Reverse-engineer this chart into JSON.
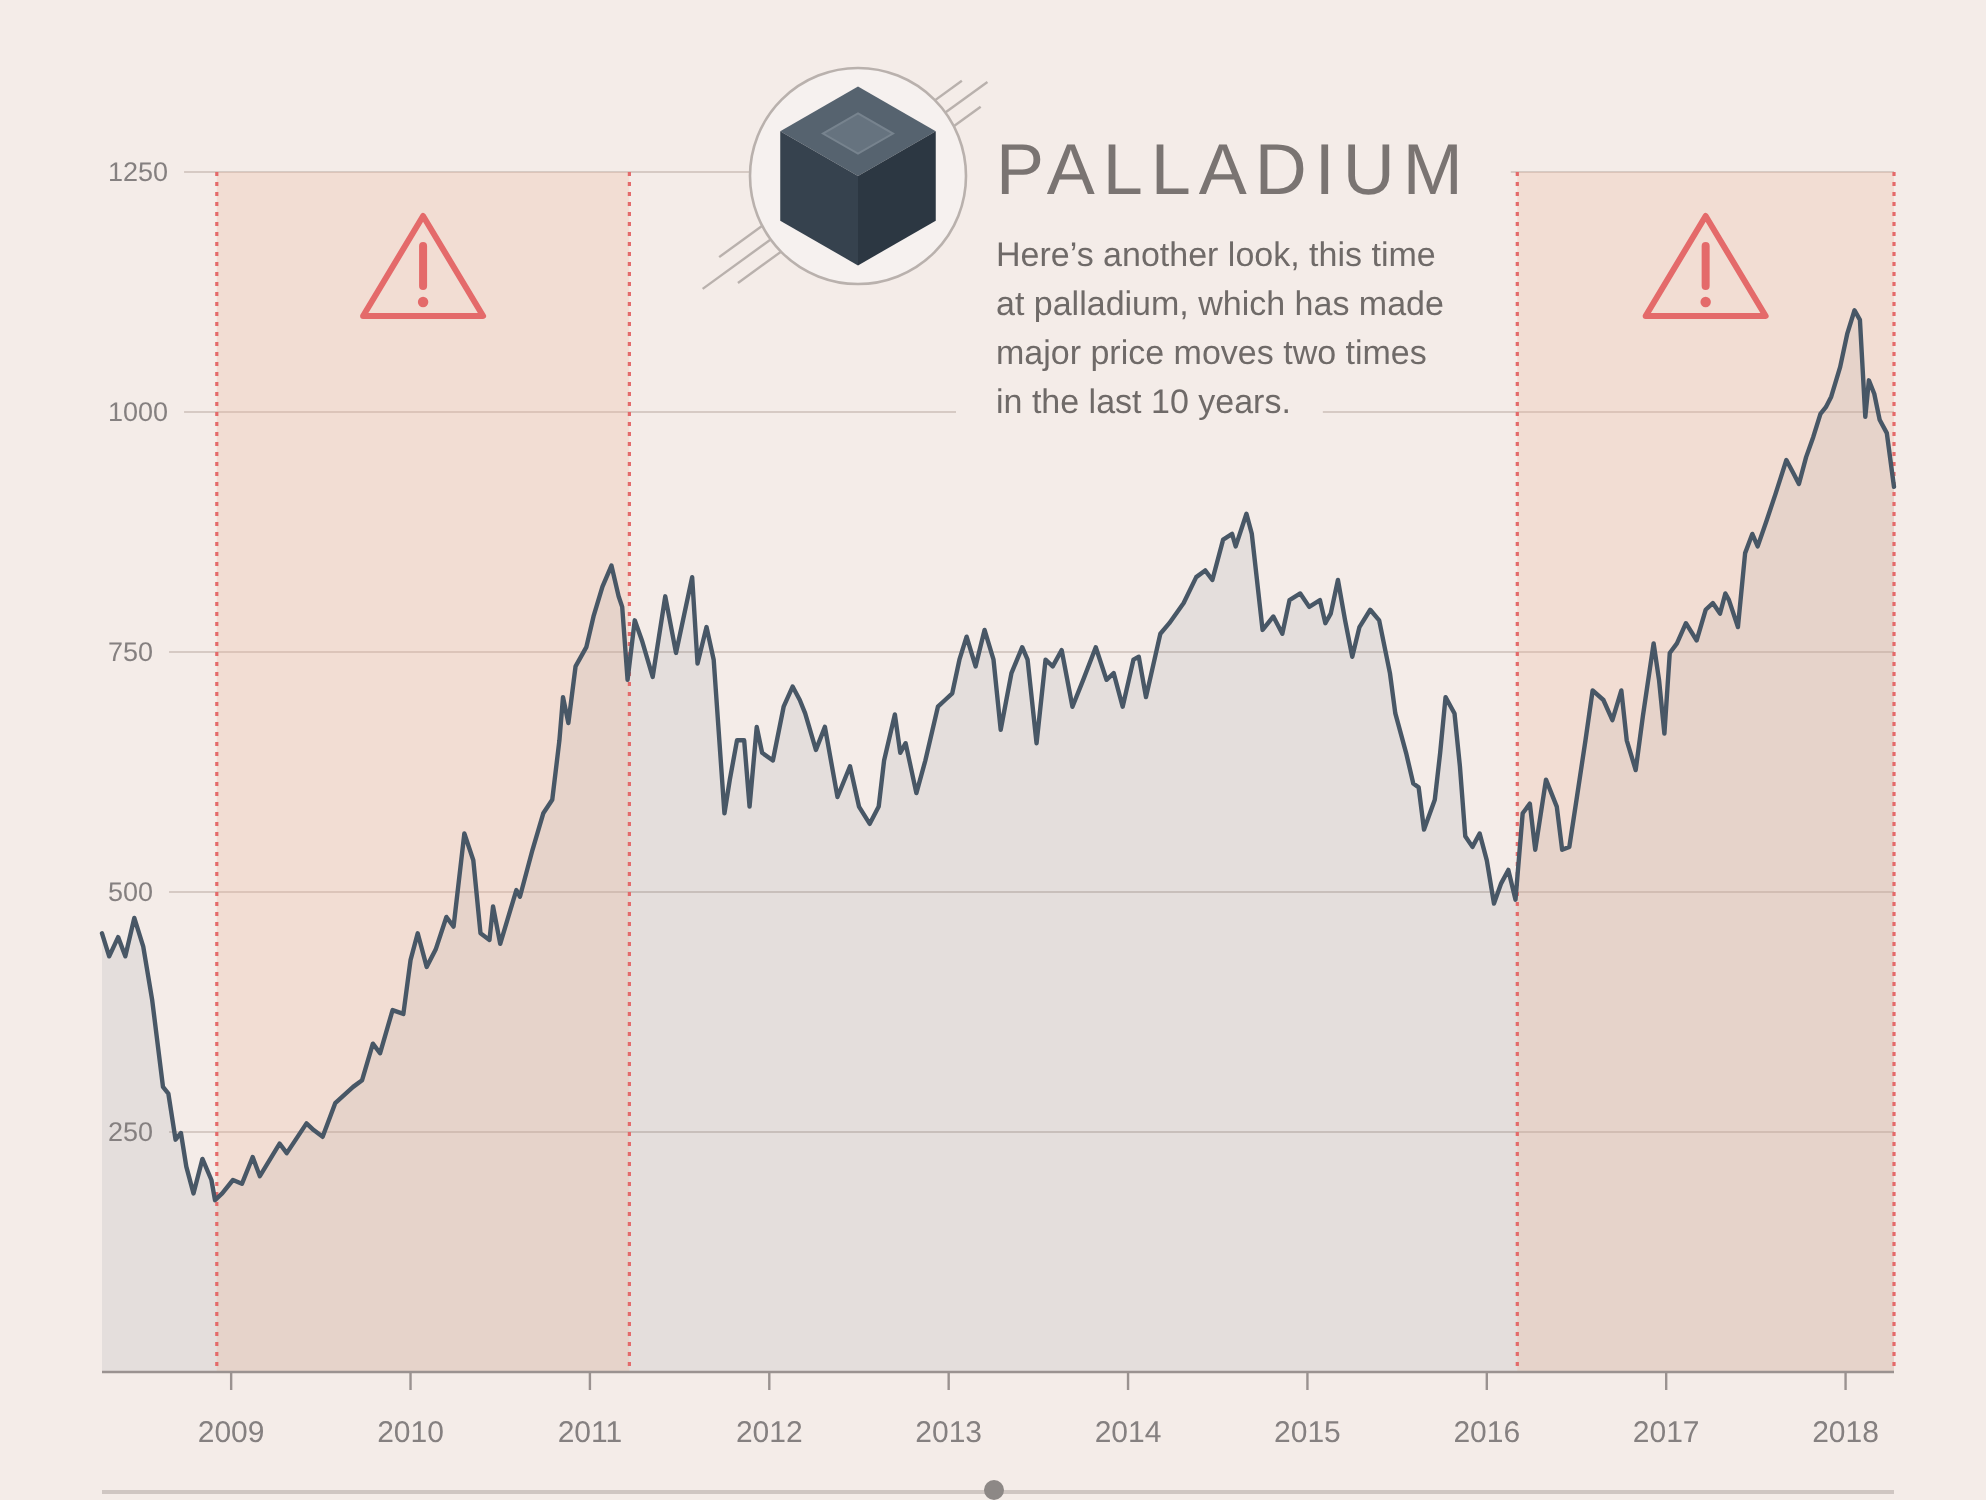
{
  "chart_data": {
    "type": "area",
    "title": "PALLADIUM",
    "subtitle": "Here’s another look, this time at palladium, which has made major price moves two times in the last 10 years.",
    "x": [
      2008.28,
      2008.32,
      2008.37,
      2008.41,
      2008.46,
      2008.51,
      2008.56,
      2008.62,
      2008.65,
      2008.69,
      2008.72,
      2008.75,
      2008.79,
      2008.84,
      2008.89,
      2008.91,
      2008.95,
      2009.01,
      2009.06,
      2009.12,
      2009.16,
      2009.27,
      2009.31,
      2009.42,
      2009.46,
      2009.51,
      2009.58,
      2009.68,
      2009.73,
      2009.79,
      2009.83,
      2009.9,
      2009.96,
      2010.0,
      2010.04,
      2010.09,
      2010.14,
      2010.2,
      2010.24,
      2010.3,
      2010.35,
      2010.39,
      2010.44,
      2010.46,
      2010.5,
      2010.54,
      2010.59,
      2010.61,
      2010.68,
      2010.74,
      2010.79,
      2010.83,
      2010.85,
      2010.88,
      2010.92,
      2010.98,
      2011.02,
      2011.07,
      2011.12,
      2011.16,
      2011.18,
      2011.21,
      2011.25,
      2011.29,
      2011.35,
      2011.42,
      2011.48,
      2011.57,
      2011.6,
      2011.65,
      2011.69,
      2011.75,
      2011.78,
      2011.82,
      2011.86,
      2011.89,
      2011.93,
      2011.96,
      2012.02,
      2012.08,
      2012.13,
      2012.17,
      2012.2,
      2012.26,
      2012.31,
      2012.38,
      2012.45,
      2012.5,
      2012.56,
      2012.61,
      2012.64,
      2012.7,
      2012.73,
      2012.76,
      2012.82,
      2012.87,
      2012.94,
      2012.98,
      2013.02,
      2013.06,
      2013.1,
      2013.15,
      2013.2,
      2013.25,
      2013.29,
      2013.35,
      2013.41,
      2013.44,
      2013.49,
      2013.54,
      2013.58,
      2013.63,
      2013.69,
      2013.75,
      2013.82,
      2013.88,
      2013.92,
      2013.97,
      2014.03,
      2014.06,
      2014.1,
      2014.18,
      2014.23,
      2014.31,
      2014.38,
      2014.43,
      2014.47,
      2014.53,
      2014.58,
      2014.6,
      2014.66,
      2014.69,
      2014.75,
      2014.81,
      2014.86,
      2014.9,
      2014.96,
      2015.01,
      2015.07,
      2015.1,
      2015.13,
      2015.17,
      2015.21,
      2015.25,
      2015.29,
      2015.35,
      2015.4,
      2015.46,
      2015.49,
      2015.55,
      2015.59,
      2015.62,
      2015.65,
      2015.71,
      2015.74,
      2015.77,
      2015.82,
      2015.85,
      2015.88,
      2015.92,
      2015.96,
      2016.0,
      2016.04,
      2016.08,
      2016.12,
      2016.16,
      2016.2,
      2016.24,
      2016.27,
      2016.33,
      2016.39,
      2016.42,
      2016.46,
      2016.5,
      2016.55,
      2016.59,
      2016.65,
      2016.7,
      2016.75,
      2016.78,
      2016.83,
      2016.87,
      2016.93,
      2016.96,
      2016.99,
      2017.02,
      2017.06,
      2017.11,
      2017.17,
      2017.22,
      2017.26,
      2017.3,
      2017.33,
      2017.35,
      2017.4,
      2017.44,
      2017.48,
      2017.51,
      2017.56,
      2017.61,
      2017.67,
      2017.71,
      2017.74,
      2017.78,
      2017.82,
      2017.86,
      2017.89,
      2017.92,
      2017.97,
      2018.01,
      2018.05,
      2018.08,
      2018.11,
      2018.13,
      2018.16,
      2018.19,
      2018.23,
      2018.27
    ],
    "values": [
      457,
      433,
      453,
      433,
      473,
      443,
      387,
      297,
      290,
      242,
      249,
      214,
      186,
      222,
      200,
      179,
      186,
      200,
      196,
      224,
      204,
      238,
      228,
      259,
      252,
      245,
      280,
      297,
      304,
      342,
      332,
      377,
      373,
      429,
      457,
      422,
      440,
      474,
      464,
      561,
      533,
      457,
      450,
      485,
      446,
      471,
      502,
      495,
      544,
      582,
      596,
      658,
      703,
      676,
      735,
      755,
      787,
      818,
      840,
      808,
      797,
      721,
      783,
      762,
      724,
      808,
      749,
      828,
      738,
      776,
      742,
      582,
      617,
      658,
      658,
      589,
      672,
      645,
      637,
      693,
      714,
      700,
      686,
      648,
      672,
      599,
      631,
      589,
      571,
      589,
      637,
      685,
      645,
      655,
      603,
      637,
      693,
      700,
      707,
      742,
      766,
      735,
      773,
      742,
      669,
      728,
      755,
      742,
      655,
      742,
      735,
      752,
      693,
      721,
      755,
      721,
      728,
      693,
      742,
      745,
      703,
      769,
      780,
      801,
      828,
      835,
      825,
      867,
      873,
      860,
      894,
      873,
      773,
      787,
      769,
      804,
      811,
      797,
      804,
      780,
      790,
      825,
      783,
      745,
      776,
      794,
      783,
      728,
      686,
      645,
      613,
      609,
      565,
      596,
      645,
      703,
      686,
      631,
      558,
      547,
      561,
      533,
      488,
      509,
      523,
      492,
      582,
      592,
      544,
      617,
      589,
      544,
      547,
      596,
      658,
      710,
      700,
      679,
      710,
      658,
      627,
      683,
      759,
      721,
      665,
      749,
      759,
      780,
      762,
      794,
      801,
      790,
      811,
      804,
      776,
      853,
      873,
      860,
      887,
      915,
      950,
      936,
      925,
      953,
      974,
      998,
      1005,
      1016,
      1047,
      1082,
      1106,
      1096,
      995,
      1033,
      1019,
      992,
      978,
      922
    ],
    "color": "#485766",
    "xlim": [
      2008.28,
      2018.27
    ],
    "xticks": [
      2009,
      2010,
      2011,
      2012,
      2013,
      2014,
      2015,
      2016,
      2017,
      2018
    ],
    "ylim": [
      0,
      1250
    ],
    "yticks": [
      250,
      500,
      750,
      1000,
      1250
    ],
    "grid": "y",
    "bands": [
      {
        "axis": "x",
        "from": 2008.92,
        "to": 2011.22,
        "color": "#eeb89f"
      },
      {
        "axis": "x",
        "from": 2016.17,
        "to": 2018.27,
        "color": "#eeb89f"
      }
    ],
    "ref_lines": [
      {
        "axis": "x",
        "value": 2008.92,
        "color": "#e46a6a",
        "line_style": "dotted"
      },
      {
        "axis": "x",
        "value": 2011.22,
        "color": "#e46a6a",
        "line_style": "dotted"
      },
      {
        "axis": "x",
        "value": 2016.17,
        "color": "#e46a6a",
        "line_style": "dotted"
      },
      {
        "axis": "x",
        "value": 2018.27,
        "color": "#e46a6a",
        "line_style": "dotted"
      }
    ]
  }
}
